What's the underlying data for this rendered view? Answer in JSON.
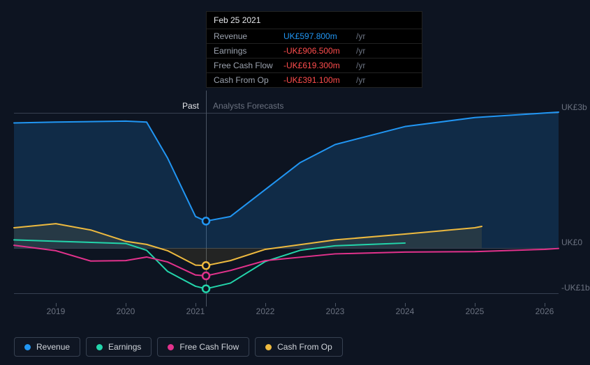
{
  "chart": {
    "type": "line-area",
    "background_color": "#0d1421",
    "grid_color": "#374151",
    "text_color": "#6b7280",
    "x": {
      "ticks": [
        "2019",
        "2020",
        "2021",
        "2022",
        "2023",
        "2024",
        "2025",
        "2026"
      ],
      "fontsize": 12
    },
    "y": {
      "ticks": [
        {
          "label": "UK£3b",
          "value": 3000
        },
        {
          "label": "UK£0",
          "value": 0
        },
        {
          "label": "-UK£1b",
          "value": -1000
        }
      ],
      "min": -1300,
      "max": 3500,
      "fontsize": 12
    },
    "divider": {
      "x_value": "2021-02-25",
      "past_label": "Past",
      "future_label": "Analysts Forecasts"
    },
    "series": [
      {
        "name": "Revenue",
        "color": "#2196f3",
        "fill": true,
        "fill_color": "rgba(33,150,243,0.18)",
        "width": 2,
        "points": [
          [
            2018.4,
            2780
          ],
          [
            2019,
            2800
          ],
          [
            2020,
            2820
          ],
          [
            2020.3,
            2800
          ],
          [
            2020.6,
            2000
          ],
          [
            2021,
            700
          ],
          [
            2021.15,
            597.8
          ],
          [
            2021.5,
            700
          ],
          [
            2022,
            1300
          ],
          [
            2022.5,
            1900
          ],
          [
            2023,
            2300
          ],
          [
            2024,
            2700
          ],
          [
            2025,
            2900
          ],
          [
            2026,
            3000
          ],
          [
            2026.2,
            3020
          ]
        ]
      },
      {
        "name": "Earnings",
        "color": "#23d5ab",
        "fill": false,
        "width": 2,
        "points": [
          [
            2018.4,
            180
          ],
          [
            2019,
            150
          ],
          [
            2020,
            100
          ],
          [
            2020.3,
            -50
          ],
          [
            2020.6,
            -520
          ],
          [
            2021,
            -850
          ],
          [
            2021.15,
            -906.5
          ],
          [
            2021.5,
            -780
          ],
          [
            2022,
            -300
          ],
          [
            2022.5,
            -50
          ],
          [
            2023,
            50
          ],
          [
            2023.5,
            80
          ],
          [
            2024,
            110
          ]
        ]
      },
      {
        "name": "Free Cash Flow",
        "color": "#e2328c",
        "fill": false,
        "width": 2,
        "points": [
          [
            2018.4,
            60
          ],
          [
            2019,
            -60
          ],
          [
            2019.5,
            -290
          ],
          [
            2020,
            -280
          ],
          [
            2020.3,
            -200
          ],
          [
            2020.6,
            -310
          ],
          [
            2021,
            -600
          ],
          [
            2021.15,
            -619.3
          ],
          [
            2021.5,
            -500
          ],
          [
            2022,
            -280
          ],
          [
            2023,
            -130
          ],
          [
            2024,
            -90
          ],
          [
            2025,
            -80
          ],
          [
            2026,
            -30
          ],
          [
            2026.2,
            -10
          ]
        ]
      },
      {
        "name": "Cash From Op",
        "color": "#eeba3f",
        "fill": true,
        "fill_color": "rgba(238,186,63,0.10)",
        "width": 2,
        "points": [
          [
            2018.4,
            450
          ],
          [
            2019,
            540
          ],
          [
            2019.5,
            400
          ],
          [
            2020,
            150
          ],
          [
            2020.3,
            80
          ],
          [
            2020.6,
            -60
          ],
          [
            2021,
            -380
          ],
          [
            2021.15,
            -391.1
          ],
          [
            2021.5,
            -280
          ],
          [
            2022,
            -30
          ],
          [
            2023,
            180
          ],
          [
            2024,
            310
          ],
          [
            2025,
            450
          ],
          [
            2025.1,
            480
          ]
        ]
      }
    ],
    "markers": [
      {
        "series": "Revenue",
        "x": 2021.15,
        "y": 597.8,
        "color": "#2196f3"
      },
      {
        "series": "Cash From Op",
        "x": 2021.15,
        "y": -391.1,
        "color": "#eeba3f"
      },
      {
        "series": "Free Cash Flow",
        "x": 2021.15,
        "y": -619.3,
        "color": "#e2328c"
      },
      {
        "series": "Earnings",
        "x": 2021.15,
        "y": -906.5,
        "color": "#23d5ab"
      }
    ]
  },
  "tooltip": {
    "date": "Feb 25 2021",
    "unit_suffix": "/yr",
    "rows": [
      {
        "label": "Revenue",
        "value": "UK£597.800m",
        "color": "#2196f3"
      },
      {
        "label": "Earnings",
        "value": "-UK£906.500m",
        "color": "#ff4d4d"
      },
      {
        "label": "Free Cash Flow",
        "value": "-UK£619.300m",
        "color": "#ff4d4d"
      },
      {
        "label": "Cash From Op",
        "value": "-UK£391.100m",
        "color": "#ff4d4d"
      }
    ]
  },
  "legend": [
    {
      "label": "Revenue",
      "color": "#2196f3"
    },
    {
      "label": "Earnings",
      "color": "#23d5ab"
    },
    {
      "label": "Free Cash Flow",
      "color": "#e2328c"
    },
    {
      "label": "Cash From Op",
      "color": "#eeba3f"
    }
  ]
}
